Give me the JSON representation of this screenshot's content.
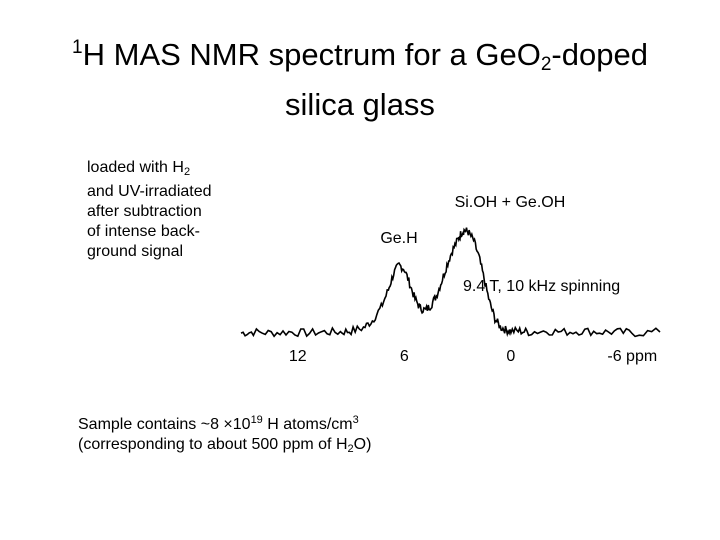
{
  "title": {
    "pre_sup": "1",
    "part1": "H MAS NMR spectrum for a GeO",
    "sub": "2",
    "part2": "-doped",
    "line2": "silica glass"
  },
  "condition_note": {
    "line1": "loaded with H",
    "line1_sub": "2",
    "line2": "and UV-irradiated",
    "line3": "after subtraction",
    "line4": "of intense back-",
    "line5": "ground signal"
  },
  "field_note": "9.4 T, 10 kHz spinning",
  "sample_note": {
    "line1_a": "Sample contains ~8 ×10",
    "line1_sup1": "19",
    "line1_b": " H atoms/cm",
    "line1_sup2": "3",
    "line2_a": "(corresponding to about 500 ppm of H",
    "line2_sub": "2",
    "line2_b": "O)"
  },
  "chart_data": {
    "type": "line",
    "x_direction": "reversed",
    "xlim": [
      15.2,
      -8.4
    ],
    "x_ticks": [
      {
        "value": 12,
        "label": "12"
      },
      {
        "value": 6,
        "label": "6"
      },
      {
        "value": 0,
        "label": "0"
      },
      {
        "value": -6,
        "label": "-6 ppm"
      }
    ],
    "y_axis_shown": false,
    "annotations": [
      {
        "text": "Ge.H",
        "ppm": 6.3
      },
      {
        "text": "Si.OH + Ge.OH",
        "ppm": 2.7
      }
    ],
    "series": [
      {
        "x": [
          15.2,
          14.5,
          13.5,
          12.5,
          11.5,
          10.5,
          9.6,
          9.0,
          8.3,
          7.8,
          7.3,
          6.9,
          6.6,
          6.3,
          6.0,
          5.7,
          5.4,
          5.1,
          4.8,
          4.5,
          4.2,
          3.9,
          3.6,
          3.3,
          3.0,
          2.8,
          2.6,
          2.4,
          2.1,
          1.8,
          1.5,
          1.2,
          0.9,
          0.6,
          0.3,
          0.0,
          -0.5,
          -1.0,
          -2.0,
          -3.0,
          -4.0,
          -5.0,
          -6.0,
          -7.0,
          -8.4
        ],
        "y": [
          0.0,
          0.01,
          0.0,
          0.01,
          0.0,
          0.01,
          0.01,
          0.02,
          0.05,
          0.12,
          0.25,
          0.42,
          0.58,
          0.66,
          0.62,
          0.48,
          0.33,
          0.24,
          0.22,
          0.27,
          0.36,
          0.5,
          0.66,
          0.8,
          0.9,
          0.97,
          1.0,
          0.98,
          0.9,
          0.74,
          0.52,
          0.3,
          0.14,
          0.06,
          0.03,
          0.02,
          0.02,
          0.01,
          0.02,
          0.01,
          0.02,
          0.01,
          0.01,
          0.0,
          0.01
        ]
      }
    ]
  }
}
